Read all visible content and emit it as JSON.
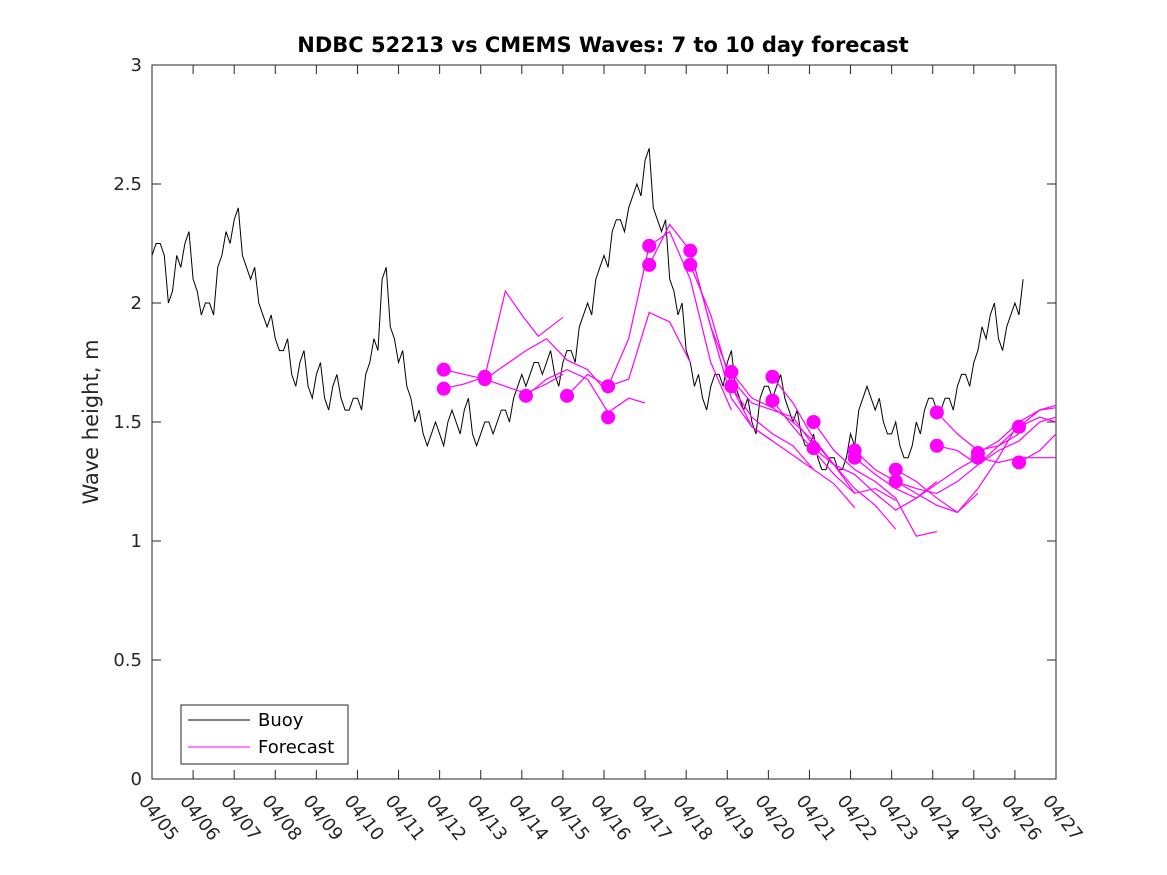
{
  "chart_data": {
    "type": "line",
    "title": "NDBC 52213 vs CMEMS Waves: 7 to 10 day forecast",
    "xlabel": "",
    "ylabel": "Wave height, m",
    "ylim": [
      0,
      3
    ],
    "yticks": [
      0,
      0.5,
      1,
      1.5,
      2,
      2.5,
      3
    ],
    "ytick_labels": [
      "0",
      "0.5",
      "1",
      "1.5",
      "2",
      "2.5",
      "3"
    ],
    "xlim": [
      0,
      22
    ],
    "xtick_labels": [
      "04/05",
      "04/06",
      "04/07",
      "04/08",
      "04/09",
      "04/10",
      "04/11",
      "04/12",
      "04/13",
      "04/14",
      "04/15",
      "04/16",
      "04/17",
      "04/18",
      "04/19",
      "04/20",
      "04/21",
      "04/22",
      "04/23",
      "04/24",
      "04/25",
      "04/26",
      "04/27"
    ],
    "x_unit": "days since 04/05",
    "legend": {
      "placement": "bottom-left",
      "entries": [
        "Buoy",
        "Forecast"
      ]
    },
    "colors": {
      "buoy": "#000000",
      "forecast": "#ff00ff"
    },
    "series": [
      {
        "name": "Buoy",
        "color": "#000000",
        "x": [
          0,
          0.2,
          0.4,
          0.6,
          0.8,
          1.0,
          1.2,
          1.4,
          1.6,
          1.8,
          2.0,
          2.2,
          2.4,
          2.6,
          2.8,
          3.0,
          3.2,
          3.4,
          3.6,
          3.8,
          4.0,
          4.2,
          4.4,
          4.6,
          4.8,
          5.0,
          5.2,
          5.4,
          5.6,
          5.8,
          6.0,
          6.2,
          6.4,
          6.6,
          6.8,
          7.0,
          7.2,
          7.4,
          7.6,
          7.8,
          8.0,
          8.2,
          8.4,
          8.6,
          8.8,
          9.0,
          9.2,
          9.4,
          9.6,
          9.8,
          10.0,
          10.2,
          10.4,
          10.6,
          10.8,
          11.0,
          11.2,
          11.4,
          11.6,
          11.8,
          12.0,
          12.2,
          12.4,
          12.6,
          12.8,
          13.0,
          13.2,
          13.4,
          13.6,
          13.8,
          14.0,
          14.2,
          14.4,
          14.6,
          14.8,
          15.0,
          15.2,
          15.4,
          15.6,
          15.8,
          16.0,
          16.2,
          16.4,
          16.6,
          16.8,
          17.0,
          17.2,
          17.4,
          17.6,
          17.8,
          18.0,
          18.2,
          18.4,
          18.6,
          18.8,
          19.0,
          19.2,
          19.4,
          19.6,
          19.8,
          20.0,
          20.2,
          20.4,
          20.6,
          20.8,
          21.0,
          21.2
        ],
        "values": [
          2.2,
          2.25,
          2.0,
          2.2,
          2.25,
          2.1,
          1.95,
          2.0,
          2.15,
          2.3,
          2.35,
          2.2,
          2.1,
          2.0,
          1.9,
          1.85,
          1.8,
          1.7,
          1.75,
          1.65,
          1.7,
          1.6,
          1.65,
          1.6,
          1.55,
          1.6,
          1.7,
          1.85,
          2.1,
          1.9,
          1.75,
          1.65,
          1.5,
          1.45,
          1.45,
          1.45,
          1.5,
          1.5,
          1.55,
          1.45,
          1.45,
          1.5,
          1.5,
          1.55,
          1.6,
          1.7,
          1.7,
          1.75,
          1.75,
          1.7,
          1.75,
          1.8,
          1.9,
          2.0,
          2.1,
          2.2,
          2.3,
          2.35,
          2.4,
          2.5,
          2.6,
          2.4,
          2.3,
          2.1,
          1.95,
          1.8,
          1.65,
          1.6,
          1.65,
          1.7,
          1.75,
          1.65,
          1.55,
          1.5,
          1.6,
          1.65,
          1.65,
          1.6,
          1.5,
          1.45,
          1.4,
          1.35,
          1.3,
          1.35,
          1.3,
          1.45,
          1.55,
          1.65,
          1.55,
          1.5,
          1.45,
          1.4,
          1.35,
          1.5,
          1.55,
          1.6,
          1.55,
          1.6,
          1.65,
          1.7,
          1.75,
          1.9,
          1.95,
          1.85,
          1.9,
          2.0,
          2.1
        ]
      },
      {
        "name": "Forecast",
        "color": "#ff00ff",
        "x": [
          7.1,
          7.6,
          8.1,
          8.6,
          9.1,
          9.6,
          10.0
        ],
        "values": [
          1.72,
          1.7,
          1.68,
          1.65,
          1.62,
          1.66,
          1.7
        ]
      },
      {
        "name": "Forecast",
        "color": "#ff00ff",
        "x": [
          7.1,
          7.6,
          8.1,
          8.6,
          9.0,
          9.4,
          10.0
        ],
        "values": [
          1.64,
          1.66,
          1.69,
          2.05,
          1.95,
          1.86,
          1.94
        ]
      },
      {
        "name": "Forecast",
        "color": "#ff00ff",
        "x": [
          8.1,
          8.6,
          9.1,
          9.6,
          10.1,
          10.6,
          11.1
        ],
        "values": [
          1.68,
          1.74,
          1.8,
          1.85,
          1.76,
          1.72,
          1.62
        ]
      },
      {
        "name": "Forecast",
        "color": "#ff00ff",
        "x": [
          9.1,
          9.6,
          10.1,
          10.6,
          11.1,
          11.6,
          12.0
        ],
        "values": [
          1.61,
          1.68,
          1.72,
          1.68,
          1.54,
          1.6,
          1.58
        ]
      },
      {
        "name": "Forecast",
        "color": "#ff00ff",
        "x": [
          10.1,
          10.6,
          11.1,
          11.6,
          12.1,
          12.6,
          13.1
        ],
        "values": [
          1.61,
          1.7,
          1.65,
          1.68,
          1.96,
          1.92,
          1.75
        ]
      },
      {
        "name": "Forecast",
        "color": "#ff00ff",
        "x": [
          11.1,
          11.6,
          12.1,
          12.6,
          13.1,
          13.6,
          14.1
        ],
        "values": [
          1.65,
          1.85,
          2.24,
          2.3,
          2.1,
          1.75,
          1.55
        ]
      },
      {
        "name": "Forecast",
        "color": "#ff00ff",
        "x": [
          12.1,
          12.6,
          13.1,
          13.6,
          14.1,
          14.6,
          15.1
        ],
        "values": [
          2.16,
          2.33,
          2.22,
          1.9,
          1.6,
          1.48,
          1.42
        ]
      },
      {
        "name": "Forecast",
        "color": "#ff00ff",
        "x": [
          13.1,
          13.6,
          14.1,
          14.6,
          15.1,
          15.6,
          16.1
        ],
        "values": [
          2.22,
          1.9,
          1.68,
          1.58,
          1.55,
          1.52,
          1.4
        ]
      },
      {
        "name": "Forecast",
        "color": "#ff00ff",
        "x": [
          13.1,
          13.6,
          14.1,
          14.6,
          15.1,
          15.6,
          16.1
        ],
        "values": [
          2.16,
          1.95,
          1.65,
          1.48,
          1.42,
          1.36,
          1.3
        ]
      },
      {
        "name": "Forecast",
        "color": "#ff00ff",
        "x": [
          14.1,
          14.6,
          15.1,
          15.6,
          16.1,
          16.6,
          17.1
        ],
        "values": [
          1.71,
          1.6,
          1.56,
          1.5,
          1.42,
          1.32,
          1.2
        ]
      },
      {
        "name": "Forecast",
        "color": "#ff00ff",
        "x": [
          14.1,
          14.6,
          15.1,
          15.6,
          16.1,
          16.6,
          17.1
        ],
        "values": [
          1.65,
          1.52,
          1.45,
          1.4,
          1.3,
          1.24,
          1.14
        ]
      },
      {
        "name": "Forecast",
        "color": "#ff00ff",
        "x": [
          15.1,
          15.6,
          16.1,
          16.6,
          17.1,
          17.6,
          18.1
        ],
        "values": [
          1.69,
          1.58,
          1.43,
          1.32,
          1.22,
          1.15,
          1.05
        ]
      },
      {
        "name": "Forecast",
        "color": "#ff00ff",
        "x": [
          15.1,
          15.6,
          16.1,
          16.6,
          17.1,
          17.6,
          18.1
        ],
        "values": [
          1.59,
          1.48,
          1.38,
          1.28,
          1.2,
          1.22,
          1.17
        ]
      },
      {
        "name": "Forecast",
        "color": "#ff00ff",
        "x": [
          16.1,
          16.6,
          17.1,
          17.6,
          18.1,
          18.6,
          19.1
        ],
        "values": [
          1.5,
          1.38,
          1.3,
          1.25,
          1.18,
          1.02,
          1.04
        ]
      },
      {
        "name": "Forecast",
        "color": "#ff00ff",
        "x": [
          16.1,
          16.6,
          17.1,
          17.6,
          18.1,
          18.6,
          19.1
        ],
        "values": [
          1.39,
          1.32,
          1.28,
          1.2,
          1.13,
          1.18,
          1.25
        ]
      },
      {
        "name": "Forecast",
        "color": "#ff00ff",
        "x": [
          17.1,
          17.6,
          18.1,
          18.6,
          19.1,
          19.6,
          20.1
        ],
        "values": [
          1.38,
          1.3,
          1.25,
          1.2,
          1.15,
          1.12,
          1.2
        ]
      },
      {
        "name": "Forecast",
        "color": "#ff00ff",
        "x": [
          17.1,
          17.6,
          18.1,
          18.6,
          19.1,
          19.6,
          20.1
        ],
        "values": [
          1.35,
          1.28,
          1.22,
          1.18,
          1.24,
          1.3,
          1.35
        ]
      },
      {
        "name": "Forecast",
        "color": "#ff00ff",
        "x": [
          18.1,
          18.6,
          19.1,
          19.6,
          20.1,
          20.6,
          21.1
        ],
        "values": [
          1.3,
          1.25,
          1.18,
          1.12,
          1.22,
          1.35,
          1.5
        ]
      },
      {
        "name": "Forecast",
        "color": "#ff00ff",
        "x": [
          18.1,
          18.6,
          19.1,
          19.6,
          20.1,
          20.6,
          21.1
        ],
        "values": [
          1.25,
          1.22,
          1.2,
          1.25,
          1.32,
          1.4,
          1.45
        ]
      },
      {
        "name": "Forecast",
        "color": "#ff00ff",
        "x": [
          19.1,
          19.6,
          20.1,
          20.6,
          21.1,
          21.6,
          22.0
        ],
        "values": [
          1.54,
          1.45,
          1.38,
          1.4,
          1.48,
          1.55,
          1.57
        ]
      },
      {
        "name": "Forecast",
        "color": "#ff00ff",
        "x": [
          19.1,
          19.6,
          20.1,
          20.6,
          21.1,
          21.6,
          22.0
        ],
        "values": [
          1.4,
          1.38,
          1.32,
          1.38,
          1.42,
          1.5,
          1.52
        ]
      },
      {
        "name": "Forecast",
        "color": "#ff00ff",
        "x": [
          20.1,
          20.6,
          21.1,
          21.6,
          22.0
        ],
        "values": [
          1.37,
          1.42,
          1.5,
          1.55,
          1.56
        ]
      },
      {
        "name": "Forecast",
        "color": "#ff00ff",
        "x": [
          20.1,
          20.6,
          21.1,
          21.6,
          22.0
        ],
        "values": [
          1.35,
          1.33,
          1.35,
          1.35,
          1.35
        ]
      },
      {
        "name": "Forecast",
        "color": "#ff00ff",
        "x": [
          21.1,
          21.6,
          22.0
        ],
        "values": [
          1.48,
          1.52,
          1.5
        ]
      },
      {
        "name": "Forecast",
        "color": "#ff00ff",
        "x": [
          21.1,
          21.6,
          22.0
        ],
        "values": [
          1.33,
          1.38,
          1.45
        ]
      }
    ],
    "markers": [
      {
        "x": 7.1,
        "y": 1.72
      },
      {
        "x": 7.1,
        "y": 1.64
      },
      {
        "x": 8.1,
        "y": 1.69
      },
      {
        "x": 8.1,
        "y": 1.68
      },
      {
        "x": 9.1,
        "y": 1.61
      },
      {
        "x": 10.1,
        "y": 1.61
      },
      {
        "x": 11.1,
        "y": 1.65
      },
      {
        "x": 11.1,
        "y": 1.52
      },
      {
        "x": 12.1,
        "y": 2.24
      },
      {
        "x": 12.1,
        "y": 2.16
      },
      {
        "x": 13.1,
        "y": 2.22
      },
      {
        "x": 13.1,
        "y": 2.16
      },
      {
        "x": 14.1,
        "y": 1.71
      },
      {
        "x": 14.1,
        "y": 1.65
      },
      {
        "x": 15.1,
        "y": 1.69
      },
      {
        "x": 15.1,
        "y": 1.59
      },
      {
        "x": 16.1,
        "y": 1.5
      },
      {
        "x": 16.1,
        "y": 1.39
      },
      {
        "x": 17.1,
        "y": 1.38
      },
      {
        "x": 17.1,
        "y": 1.35
      },
      {
        "x": 18.1,
        "y": 1.3
      },
      {
        "x": 18.1,
        "y": 1.25
      },
      {
        "x": 19.1,
        "y": 1.54
      },
      {
        "x": 19.1,
        "y": 1.4
      },
      {
        "x": 20.1,
        "y": 1.37
      },
      {
        "x": 20.1,
        "y": 1.35
      },
      {
        "x": 21.1,
        "y": 1.48
      },
      {
        "x": 21.1,
        "y": 1.33
      }
    ]
  }
}
